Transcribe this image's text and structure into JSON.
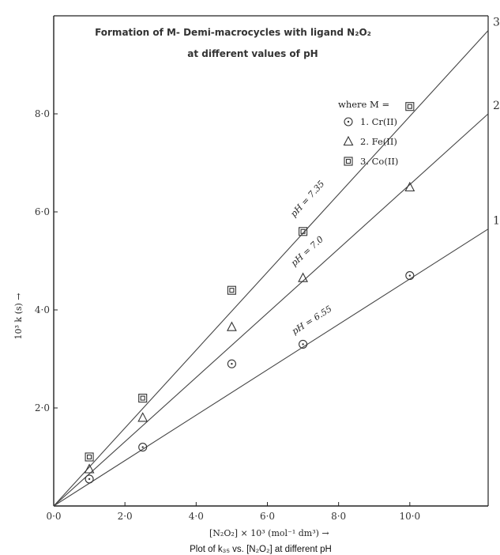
{
  "chart_data": {
    "type": "scatter",
    "title": "Formation of M- Demi-macrocycles with ligand N₂O₂",
    "subtitle": "at different values of pH",
    "xlabel": "[N₂O₂] × 10³ (mol⁻¹ dm³) →",
    "ylabel": "10³ k (s) →",
    "caption": "Plot of k₃₅ vs. [N₂O₂] at different pH",
    "xlim": [
      0,
      12.2
    ],
    "ylim": [
      0,
      10.0
    ],
    "x_ticks": [
      0,
      2,
      4,
      6,
      8,
      10
    ],
    "x_tick_labels": [
      "0·0",
      "2·0",
      "4·0",
      "6·0",
      "8·0",
      "10·0"
    ],
    "y_ticks": [
      2,
      4,
      6,
      8
    ],
    "y_tick_labels": [
      "2·0",
      "4·0",
      "6·0",
      "8·0"
    ],
    "grid": false,
    "legend_title": "where M =",
    "legend_position": "top-right",
    "series": [
      {
        "name": "1. Cr(II)",
        "marker": "circle",
        "line_label": "1",
        "ph_label": "pH = 6.55",
        "x": [
          1.0,
          2.5,
          5.0,
          7.0,
          10.0
        ],
        "y": [
          0.55,
          1.2,
          2.9,
          3.3,
          4.7
        ],
        "fit_end": [
          12.2,
          5.65
        ]
      },
      {
        "name": "2. Fe(II)",
        "marker": "triangle",
        "line_label": "2",
        "ph_label": "pH = 7.0",
        "x": [
          1.0,
          2.5,
          5.0,
          7.0,
          10.0
        ],
        "y": [
          0.75,
          1.8,
          3.65,
          4.65,
          6.5
        ],
        "fit_end": [
          12.2,
          8.0
        ]
      },
      {
        "name": "3. Co(II)",
        "marker": "square",
        "line_label": "3",
        "ph_label": "pH = 7.35",
        "x": [
          1.0,
          2.5,
          5.0,
          7.0,
          10.0
        ],
        "y": [
          1.0,
          2.2,
          4.4,
          5.6,
          8.15
        ],
        "fit_end": [
          12.2,
          9.7
        ]
      }
    ]
  }
}
